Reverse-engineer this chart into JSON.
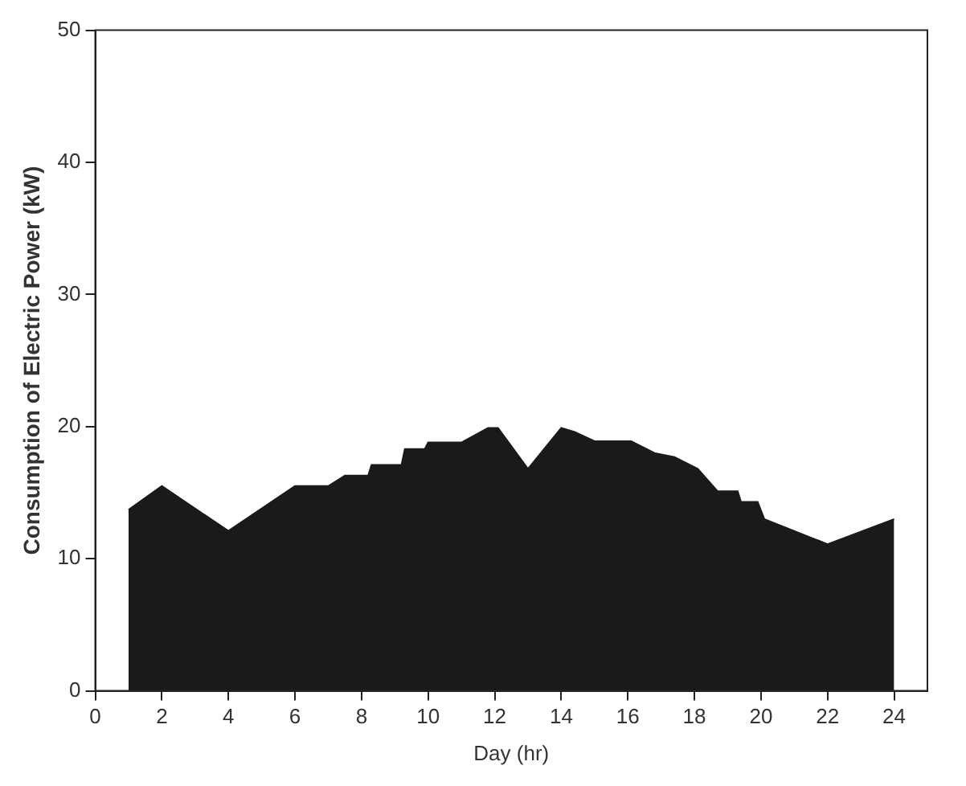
{
  "chart_data": {
    "type": "area",
    "xlabel": "Day (hr)",
    "ylabel": "Consumption of Electric Power (kW)",
    "x": [
      1,
      2,
      4,
      6,
      7,
      7.5,
      8.2,
      8.3,
      9.2,
      9.3,
      9.9,
      10,
      11,
      11.8,
      12.1,
      13,
      14,
      14.4,
      15,
      16.1,
      16.8,
      17.4,
      18.1,
      18.7,
      19.3,
      19.4,
      19.9,
      20.1,
      22,
      24
    ],
    "series": [
      {
        "color": "#1a1a1a",
        "values": [
          13.7,
          15.5,
          12.1,
          15.5,
          15.5,
          16.3,
          16.3,
          17.1,
          17.1,
          18.3,
          18.3,
          18.8,
          18.8,
          19.9,
          19.9,
          16.8,
          19.9,
          19.6,
          18.9,
          18.9,
          18.0,
          17.7,
          16.8,
          15.1,
          15.1,
          14.3,
          14.3,
          13.0,
          11.1,
          13.0
        ]
      }
    ],
    "xlim": [
      0,
      25
    ],
    "xticks": [
      0,
      2,
      4,
      6,
      8,
      10,
      12,
      14,
      16,
      18,
      20,
      22,
      24
    ],
    "ylim": [
      0,
      50
    ],
    "yticks": [
      0,
      10,
      20,
      30,
      40,
      50
    ],
    "grid": false,
    "legend": false
  }
}
